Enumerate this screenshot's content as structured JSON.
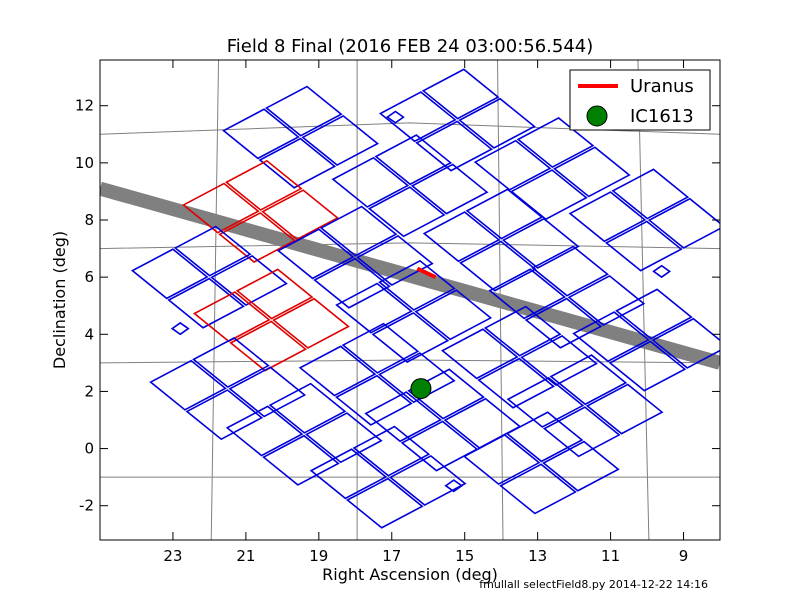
{
  "chart_data": {
    "type": "scatter",
    "title": "Field 8 Final (2016 FEB 24 03:00:56.544)",
    "xlabel": "Right Ascension (deg)",
    "ylabel": "Declination (deg)",
    "xlim": [
      25.0,
      8.0
    ],
    "ylim": [
      -3.2,
      13.6
    ],
    "x_axis_reversed": true,
    "x_ticks": [
      23,
      21,
      19,
      17,
      15,
      13,
      11,
      9
    ],
    "y_ticks": [
      12,
      10,
      8,
      6,
      4,
      2,
      0,
      -2
    ],
    "legend_position": "upper-right",
    "colors": {
      "ccd_outline": "#0000dd",
      "highlight_outline": "#e00000",
      "ecliptic_band": "#808080",
      "grid": "#808080",
      "uranus": "#ff0000",
      "ic1613_fill": "#008000"
    },
    "ccd_blocks": [
      {
        "ra": 19.5,
        "dec": 10.9,
        "color": "blue"
      },
      {
        "ra": 15.2,
        "dec": 11.5,
        "color": "blue"
      },
      {
        "ra": 20.6,
        "dec": 8.3,
        "color": "red"
      },
      {
        "ra": 16.5,
        "dec": 9.2,
        "color": "blue"
      },
      {
        "ra": 12.6,
        "dec": 9.8,
        "color": "blue"
      },
      {
        "ra": 22.0,
        "dec": 6.0,
        "color": "blue"
      },
      {
        "ra": 18.0,
        "dec": 6.7,
        "color": "blue"
      },
      {
        "ra": 14.0,
        "dec": 7.3,
        "color": "blue"
      },
      {
        "ra": 10.0,
        "dec": 8.0,
        "color": "blue"
      },
      {
        "ra": 20.3,
        "dec": 4.5,
        "color": "red"
      },
      {
        "ra": 16.4,
        "dec": 4.8,
        "color": "blue"
      },
      {
        "ra": 12.2,
        "dec": 5.3,
        "color": "blue"
      },
      {
        "ra": 21.5,
        "dec": 2.1,
        "color": "blue"
      },
      {
        "ra": 17.4,
        "dec": 2.6,
        "color": "blue"
      },
      {
        "ra": 13.5,
        "dec": 3.2,
        "color": "blue"
      },
      {
        "ra": 9.9,
        "dec": 3.8,
        "color": "blue"
      },
      {
        "ra": 19.4,
        "dec": 0.5,
        "color": "blue"
      },
      {
        "ra": 15.6,
        "dec": 1.0,
        "color": "blue"
      },
      {
        "ra": 11.7,
        "dec": 1.5,
        "color": "blue"
      },
      {
        "ra": 17.1,
        "dec": -1.0,
        "color": "blue"
      },
      {
        "ra": 12.9,
        "dec": -0.5,
        "color": "blue"
      }
    ],
    "small_markers": [
      {
        "ra": 16.9,
        "dec": 11.6
      },
      {
        "ra": 9.6,
        "dec": 6.2
      },
      {
        "ra": 22.8,
        "dec": 4.2
      },
      {
        "ra": 15.3,
        "dec": -1.3
      }
    ],
    "ecliptic": [
      {
        "ra": 25.0,
        "dec": 9.1
      },
      {
        "ra": 8.0,
        "dec": 3.0
      }
    ],
    "grid_lines": {
      "dec_lines": [
        {
          "points": [
            [
              25.0,
              11.0
            ],
            [
              16.5,
              11.4
            ],
            [
              8.0,
              11.0
            ]
          ]
        },
        {
          "points": [
            [
              25.0,
              7.0
            ],
            [
              16.5,
              7.2
            ],
            [
              8.0,
              7.0
            ]
          ]
        },
        {
          "points": [
            [
              25.0,
              3.0
            ],
            [
              16.5,
              3.1
            ],
            [
              8.0,
              3.0
            ]
          ]
        },
        {
          "points": [
            [
              25.0,
              -1.0
            ],
            [
              16.5,
              -1.0
            ],
            [
              8.0,
              -1.0
            ]
          ]
        }
      ],
      "ra_lines": [
        {
          "points": [
            [
              21.75,
              13.6
            ],
            [
              21.95,
              -3.2
            ]
          ]
        },
        {
          "points": [
            [
              17.95,
              13.6
            ],
            [
              17.95,
              -3.2
            ]
          ]
        },
        {
          "points": [
            [
              14.1,
              13.6
            ],
            [
              13.95,
              -3.2
            ]
          ]
        },
        {
          "points": [
            [
              10.25,
              13.6
            ],
            [
              9.95,
              -3.2
            ]
          ]
        }
      ]
    },
    "series": [
      {
        "name": "Uranus",
        "kind": "line",
        "points": [
          [
            16.3,
            6.3
          ],
          [
            15.8,
            6.0
          ]
        ]
      },
      {
        "name": "IC1613",
        "kind": "marker",
        "points": [
          [
            16.2,
            2.1
          ]
        ]
      }
    ]
  },
  "footer": {
    "text": "fmullall selectField8.py 2014-12-22 14:16"
  }
}
